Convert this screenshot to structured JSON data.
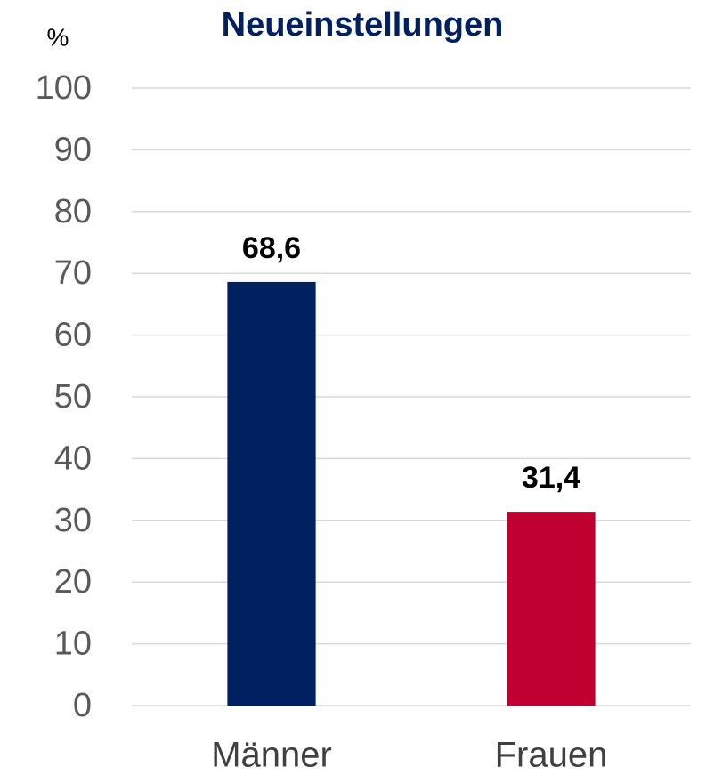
{
  "chart_data": {
    "type": "bar",
    "title": "Neueinstellungen",
    "y_label": "%",
    "categories": [
      "Männer",
      "Frauen"
    ],
    "values": [
      68.6,
      31.4
    ],
    "value_labels": [
      "68,6",
      "31,4"
    ],
    "colors": [
      "#002060",
      "#c00030"
    ],
    "ylim": [
      0,
      100
    ],
    "yticks": [
      0,
      10,
      20,
      30,
      40,
      50,
      60,
      70,
      80,
      90,
      100
    ],
    "grid": true
  }
}
